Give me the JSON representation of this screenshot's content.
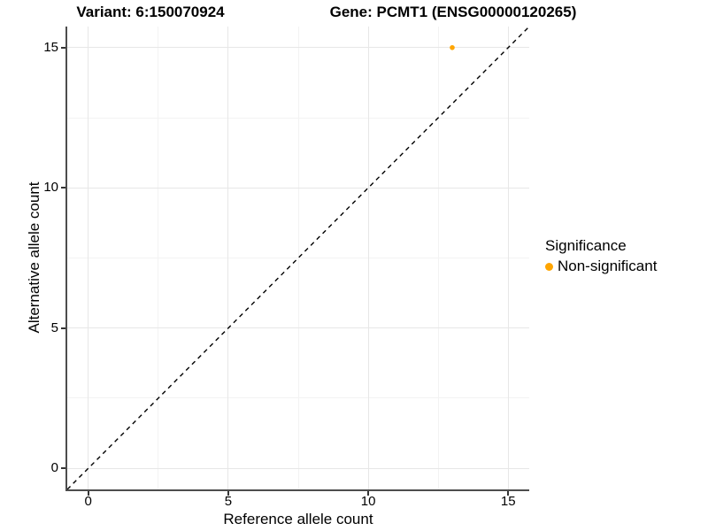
{
  "titles": {
    "variant": "Variant: 6:150070924",
    "gene": "Gene: PCMT1 (ENSG00000120265)"
  },
  "chart_data": {
    "type": "scatter",
    "xlabel": "Reference allele count",
    "ylabel": "Alternative allele count",
    "xlim": [
      -0.75,
      15.75
    ],
    "ylim": [
      -0.75,
      15.75
    ],
    "x_ticks": [
      0,
      5,
      10,
      15
    ],
    "y_ticks": [
      0,
      5,
      10,
      15
    ],
    "x_minor_ticks": [
      2.5,
      7.5,
      12.5
    ],
    "y_minor_ticks": [
      2.5,
      7.5,
      12.5
    ],
    "grid": true,
    "points": [
      {
        "x": 13,
        "y": 15,
        "series": "Non-significant"
      }
    ],
    "identity_line": {
      "style": "dashed",
      "from": [
        -0.75,
        -0.75
      ],
      "to": [
        15.75,
        15.75
      ]
    },
    "legend": {
      "title": "Significance",
      "position": "right",
      "entries": [
        {
          "label": "Non-significant",
          "color": "#FFA500"
        }
      ]
    }
  },
  "colors": {
    "point": "#FFA500",
    "axis_line": "#4d4d4d",
    "grid_major": "#e7e7e7",
    "grid_minor": "#f3f3f3",
    "dashed_line": "#000000",
    "text": "#000000"
  }
}
